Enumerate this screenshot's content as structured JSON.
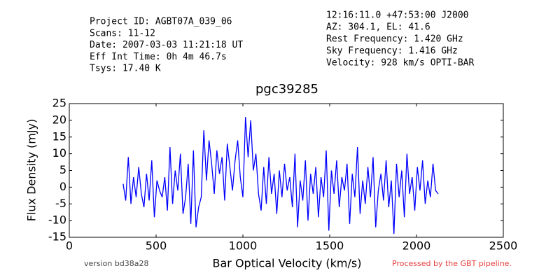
{
  "chart_data": {
    "type": "line",
    "title": "pgc39285",
    "header_left": [
      "Project ID: AGBT07A_039_06",
      "Scans: 11-12",
      "Date: 2007-03-03 11:21:18 UT",
      "Eff Int Time: 0h 4m 46.7s",
      "Tsys: 17.40 K"
    ],
    "header_right": [
      "12:16:11.0 +47:53:00 J2000",
      "AZ: 304.1, EL: 41.6",
      "Rest Frequency:   1.420 GHz",
      "Sky Frequency:    1.416 GHz",
      "Velocity: 928 km/s OPTI-BAR"
    ],
    "xlabel": "Bar Optical Velocity (km/s)",
    "ylabel": "Flux Density (mJy)",
    "footer_left": "version bd38a28",
    "footer_right": "Processed by the GBT pipeline.",
    "xlim": [
      0,
      2500
    ],
    "xticks": [
      0,
      500,
      1000,
      1500,
      2000,
      2500
    ],
    "ylim": [
      -15,
      25
    ],
    "yticks": [
      -15,
      -10,
      -5,
      0,
      5,
      10,
      15,
      20,
      25
    ],
    "x": [
      310,
      325,
      340,
      355,
      370,
      385,
      400,
      415,
      430,
      445,
      460,
      475,
      490,
      505,
      520,
      535,
      550,
      565,
      580,
      595,
      610,
      625,
      640,
      655,
      670,
      685,
      700,
      715,
      730,
      745,
      760,
      775,
      790,
      805,
      820,
      835,
      850,
      865,
      880,
      895,
      910,
      925,
      940,
      955,
      970,
      985,
      1000,
      1015,
      1030,
      1045,
      1060,
      1075,
      1090,
      1105,
      1120,
      1135,
      1150,
      1165,
      1180,
      1195,
      1210,
      1225,
      1240,
      1255,
      1270,
      1285,
      1300,
      1315,
      1330,
      1345,
      1360,
      1375,
      1390,
      1405,
      1420,
      1435,
      1450,
      1465,
      1480,
      1495,
      1510,
      1525,
      1540,
      1555,
      1570,
      1585,
      1600,
      1615,
      1630,
      1645,
      1660,
      1675,
      1690,
      1705,
      1720,
      1735,
      1750,
      1765,
      1780,
      1795,
      1810,
      1825,
      1840,
      1855,
      1870,
      1885,
      1900,
      1915,
      1930,
      1945,
      1960,
      1975,
      1990,
      2005,
      2020,
      2035,
      2050,
      2065,
      2080,
      2095,
      2110,
      2125
    ],
    "series": [
      {
        "color": "#0000ff",
        "values": [
          1,
          -4,
          9,
          -5,
          3,
          -3,
          6,
          -2,
          -6,
          4,
          -4,
          8,
          -9,
          2,
          -1,
          -3,
          3,
          -7,
          12,
          -5,
          5,
          -1,
          10,
          -8,
          -3,
          7,
          -11,
          11,
          -12,
          -6,
          -3,
          17,
          2,
          14,
          7,
          -2,
          11,
          4,
          9,
          -4,
          13,
          6,
          -1,
          8,
          14,
          3,
          -3,
          21,
          9,
          20,
          5,
          10,
          -2,
          -7,
          6,
          -5,
          9,
          -2,
          4,
          -8,
          5,
          -3,
          7,
          -1,
          3,
          -6,
          10,
          -12,
          2,
          -4,
          8,
          -10,
          4,
          -2,
          6,
          -9,
          3,
          -3,
          11,
          -13,
          5,
          -2,
          8,
          -6,
          3,
          -1,
          7,
          -11,
          4,
          -3,
          12,
          -8,
          2,
          -5,
          6,
          -3,
          9,
          -12,
          -1,
          4,
          -4,
          8,
          -6,
          2,
          -14,
          7,
          -3,
          5,
          -9,
          10,
          -2,
          3,
          -7,
          6,
          -1,
          8,
          -5,
          2,
          -3,
          7,
          -1,
          -2
        ]
      }
    ]
  }
}
